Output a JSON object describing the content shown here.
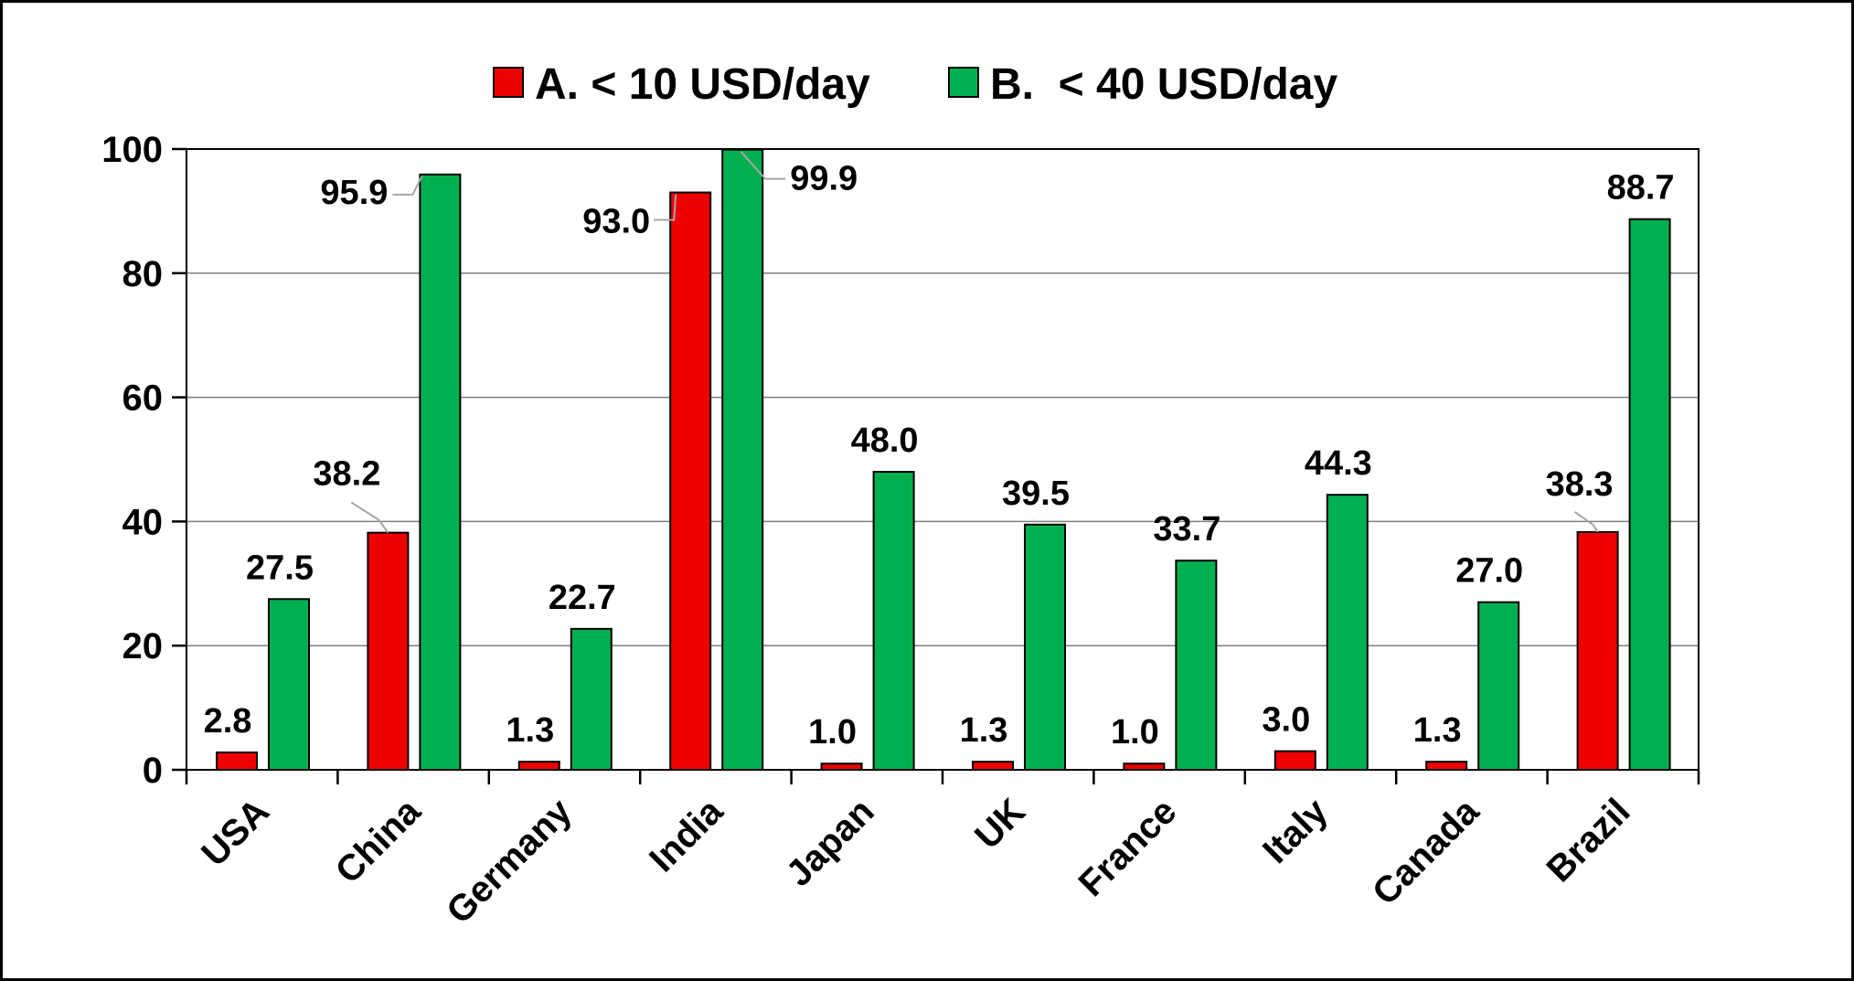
{
  "chart_data": {
    "type": "bar",
    "categories": [
      "USA",
      "China",
      "Germany",
      "India",
      "Japan",
      "UK",
      "France",
      "Italy",
      "Canada",
      "Brazil"
    ],
    "series": [
      {
        "name": "A. < 10 USD/day",
        "color": "#ee0000",
        "values": [
          2.8,
          38.2,
          1.3,
          93.0,
          1.0,
          1.3,
          1.0,
          3.0,
          1.3,
          38.3
        ],
        "labels": [
          "2.8",
          "38.2",
          "1.3",
          "93.0",
          "1.0",
          "1.3",
          "1.0",
          "3.0",
          "1.3",
          "38.3"
        ]
      },
      {
        "name": "B.  < 40 USD/day",
        "color": "#00b050",
        "values": [
          27.5,
          95.9,
          22.7,
          99.9,
          48.0,
          39.5,
          33.7,
          44.3,
          27.0,
          88.7
        ],
        "labels": [
          "27.5",
          "95.9",
          "22.7",
          "99.9",
          "48.0",
          "39.5",
          "33.7",
          "44.3",
          "27.0",
          "88.7"
        ]
      }
    ],
    "ylim": [
      0,
      100
    ],
    "yticks": [
      "0",
      "20",
      "40",
      "60",
      "80",
      "100"
    ],
    "grid": true,
    "legend": "top-center",
    "title": "",
    "xlabel": "",
    "ylabel": ""
  }
}
